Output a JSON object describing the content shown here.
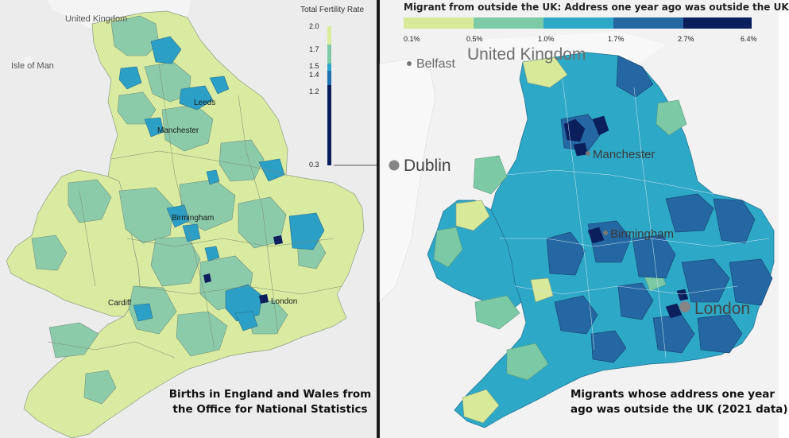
{
  "left_map": {
    "legend": {
      "title": "Total Fertility Rate",
      "ticks": [
        "2.0",
        "1.7",
        "1.5",
        "1.4",
        "1.2",
        "0.3"
      ],
      "colors": [
        "#0c1d5e",
        "#1d6fb0",
        "#2ca7c9",
        "#7fc9a8",
        "#dcec9e"
      ]
    },
    "places": {
      "uk": "United Kingdom",
      "iom": "Isle of Man",
      "leeds": "Leeds",
      "manchester": "Manchester",
      "birmingham": "Birmingham",
      "cardiff": "Cardiff",
      "london": "London"
    },
    "caption_line1": "Births in England and Wales from",
    "caption_line2": "the Office for National Statistics"
  },
  "right_map": {
    "legend": {
      "title": "Migrant from outside the UK: Address one year ago was outside the UK",
      "ticks": [
        "0.1%",
        "0.5%",
        "1.0%",
        "1.7%",
        "2.7%",
        "6.4%"
      ],
      "colors": [
        "#d8ea9a",
        "#7ccaa5",
        "#2ea8c7",
        "#2467a3",
        "#0b1f5c"
      ]
    },
    "places": {
      "belfast": "Belfast",
      "uk": "United Kingdom",
      "dublin": "Dublin",
      "manchester": "Manchester",
      "birmingham": "Birmingham",
      "london": "London"
    },
    "caption_line1": "Migrants whose address one year",
    "caption_line2": "ago was outside the UK (2021 data)"
  },
  "colors": {
    "sea": "#ececec",
    "neighbour_land": "#f6f6f6",
    "divider": "#1b1b1b"
  }
}
